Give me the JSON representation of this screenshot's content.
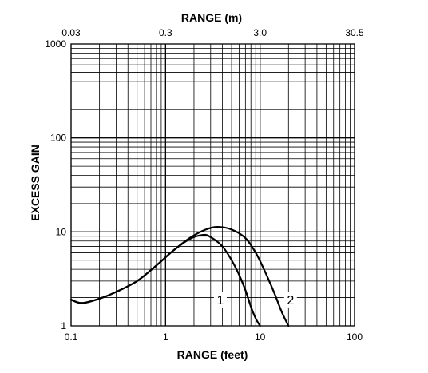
{
  "chart_data": {
    "type": "line",
    "title": "",
    "xlabel": "RANGE (feet)",
    "x2label": "RANGE (m)",
    "ylabel": "EXCESS GAIN",
    "xscale": "log",
    "yscale": "log",
    "xlim": [
      0.1,
      100
    ],
    "ylim": [
      1,
      1000
    ],
    "grid": true,
    "x_ticks": [
      {
        "value": 0.1,
        "label": "0.1"
      },
      {
        "value": 1,
        "label": "1"
      },
      {
        "value": 10,
        "label": "10"
      },
      {
        "value": 100,
        "label": "100"
      }
    ],
    "x2_ticks": [
      {
        "value": 0.1,
        "label": "0.03"
      },
      {
        "value": 1,
        "label": "0.3"
      },
      {
        "value": 10,
        "label": "3.0"
      },
      {
        "value": 100,
        "label": "30.5"
      }
    ],
    "y_ticks": [
      {
        "value": 1,
        "label": "1"
      },
      {
        "value": 10,
        "label": "10"
      },
      {
        "value": 100,
        "label": "100"
      },
      {
        "value": 1000,
        "label": "1000"
      }
    ],
    "series": [
      {
        "name": "1",
        "points": [
          [
            0.1,
            1.9
          ],
          [
            0.13,
            1.75
          ],
          [
            0.2,
            1.95
          ],
          [
            0.3,
            2.3
          ],
          [
            0.5,
            3.0
          ],
          [
            0.8,
            4.4
          ],
          [
            1.2,
            6.3
          ],
          [
            1.8,
            8.4
          ],
          [
            2.5,
            9.3
          ],
          [
            3.0,
            8.8
          ],
          [
            4.0,
            7.0
          ],
          [
            5.0,
            5.0
          ],
          [
            6.0,
            3.5
          ],
          [
            7.0,
            2.4
          ],
          [
            8.0,
            1.6
          ],
          [
            9.0,
            1.2
          ],
          [
            10.0,
            1.0
          ]
        ],
        "label_at": [
          3.8,
          1.7
        ]
      },
      {
        "name": "2",
        "points": [
          [
            0.1,
            1.9
          ],
          [
            0.13,
            1.75
          ],
          [
            0.2,
            1.95
          ],
          [
            0.3,
            2.3
          ],
          [
            0.5,
            3.0
          ],
          [
            0.8,
            4.4
          ],
          [
            1.2,
            6.3
          ],
          [
            1.8,
            8.6
          ],
          [
            2.6,
            10.5
          ],
          [
            3.5,
            11.3
          ],
          [
            5.0,
            10.6
          ],
          [
            7.0,
            8.6
          ],
          [
            9.0,
            6.0
          ],
          [
            11.0,
            4.0
          ],
          [
            14.0,
            2.3
          ],
          [
            17.0,
            1.4
          ],
          [
            20.0,
            1.0
          ]
        ],
        "label_at": [
          21,
          1.7
        ]
      }
    ]
  }
}
